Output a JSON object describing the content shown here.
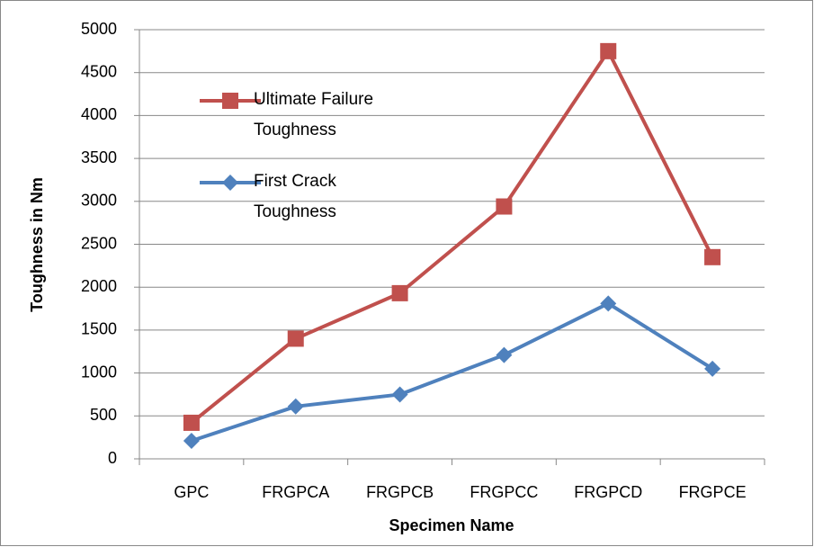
{
  "chart_data": {
    "type": "line",
    "x_label": "Specimen Name",
    "y_label": "Toughness in Nm",
    "categories": [
      "GPC",
      "FRGPCA",
      "FRGPCB",
      "FRGPCC",
      "FRGPCD",
      "FRGPCE"
    ],
    "series": [
      {
        "name": "Ultimate Failure Toughness",
        "color": "#c0504d",
        "marker": "square",
        "values": [
          420,
          1400,
          1930,
          2940,
          4750,
          2350
        ]
      },
      {
        "name": "First Crack Toughness",
        "color": "#4f81bd",
        "marker": "diamond",
        "values": [
          210,
          610,
          750,
          1210,
          1810,
          1050
        ]
      }
    ],
    "ylim": [
      0,
      5000
    ],
    "yticks": [
      0,
      500,
      1000,
      1500,
      2000,
      2500,
      3000,
      3500,
      4000,
      4500,
      5000
    ],
    "grid": true,
    "legend": "upper left"
  }
}
